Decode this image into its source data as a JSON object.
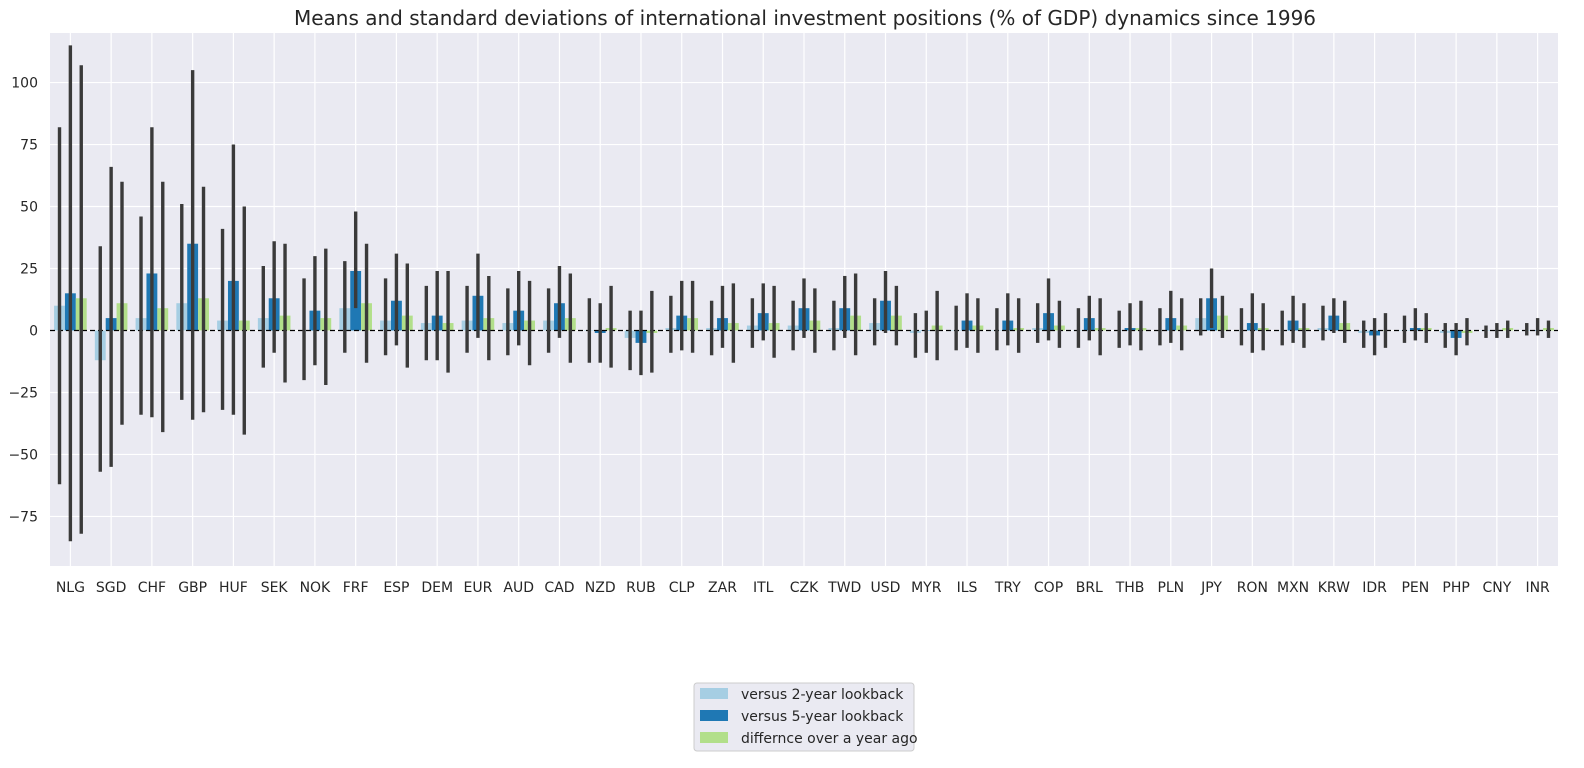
{
  "chart_data": {
    "type": "bar",
    "title": "Means and standard deviations of international investment positions (% of GDP) dynamics since 1996",
    "xlabel": "",
    "ylabel": "",
    "ylim": [
      -95,
      120
    ],
    "yticks": [
      -75,
      -50,
      -25,
      0,
      25,
      50,
      75,
      100
    ],
    "grid": true,
    "zero_line": "dashed",
    "legend_position": "bottom-center",
    "categories": [
      "NLG",
      "SGD",
      "CHF",
      "GBP",
      "HUF",
      "SEK",
      "NOK",
      "FRF",
      "ESP",
      "DEM",
      "EUR",
      "AUD",
      "CAD",
      "NZD",
      "RUB",
      "CLP",
      "ZAR",
      "ITL",
      "CZK",
      "TWD",
      "USD",
      "MYR",
      "ILS",
      "TRY",
      "COP",
      "BRL",
      "THB",
      "PLN",
      "JPY",
      "RON",
      "MXN",
      "KRW",
      "IDR",
      "PEN",
      "PHP",
      "CNY",
      "INR"
    ],
    "series": [
      {
        "name": "versus 2-year lookback",
        "color": "#a6cee3",
        "values": [
          10,
          -12,
          5,
          11,
          4,
          5,
          0,
          9,
          4,
          3,
          4,
          3,
          4,
          0,
          -3,
          1,
          1,
          2,
          2,
          1,
          3,
          -1,
          0,
          0,
          1,
          0,
          0,
          0,
          5,
          0,
          0,
          1,
          -1,
          0,
          -1,
          0,
          0
        ],
        "err_low": [
          -62,
          -57,
          -34,
          -28,
          -32,
          -15,
          -20,
          -9,
          -10,
          -12,
          -9,
          -10,
          -9,
          -13,
          -16,
          -9,
          -10,
          -7,
          -8,
          -8,
          -6,
          -11,
          -8,
          -8,
          -5,
          -7,
          -7,
          -6,
          -2,
          -6,
          -6,
          -4,
          -7,
          -5,
          -7,
          -3,
          -2
        ],
        "err_high": [
          82,
          34,
          46,
          51,
          41,
          26,
          21,
          28,
          21,
          18,
          18,
          17,
          17,
          13,
          8,
          14,
          12,
          13,
          12,
          12,
          13,
          7,
          10,
          9,
          11,
          9,
          8,
          9,
          13,
          9,
          8,
          10,
          4,
          6,
          3,
          2,
          3
        ]
      },
      {
        "name": "versus 5-year lookback",
        "color": "#1f78b4",
        "values": [
          15,
          5,
          23,
          35,
          20,
          13,
          8,
          24,
          12,
          6,
          14,
          8,
          11,
          -1,
          -5,
          6,
          5,
          7,
          9,
          9,
          12,
          0,
          4,
          4,
          7,
          5,
          1,
          5,
          13,
          3,
          4,
          6,
          -2,
          1,
          -3,
          0,
          0
        ],
        "err_low": [
          -85,
          -55,
          -35,
          -36,
          -34,
          -9,
          -14,
          9,
          -6,
          -12,
          -3,
          -6,
          -3,
          -13,
          -18,
          -8,
          -7,
          -4,
          -3,
          -3,
          -1,
          -9,
          -7,
          -6,
          -4,
          -4,
          -6,
          -5,
          1,
          -9,
          -5,
          -1,
          -10,
          -4,
          -10,
          -3,
          -2
        ],
        "err_high": [
          115,
          66,
          82,
          105,
          75,
          36,
          30,
          48,
          31,
          24,
          31,
          24,
          26,
          11,
          8,
          20,
          18,
          19,
          21,
          22,
          24,
          8,
          15,
          15,
          21,
          14,
          11,
          16,
          25,
          15,
          14,
          13,
          5,
          9,
          3,
          3,
          5
        ]
      },
      {
        "name": "differnce over a year ago",
        "color": "#b2df8a",
        "values": [
          13,
          11,
          9,
          13,
          4,
          6,
          5,
          11,
          6,
          3,
          5,
          4,
          5,
          1,
          -1,
          5,
          3,
          3,
          4,
          6,
          6,
          2,
          2,
          1,
          2,
          1,
          1,
          2,
          6,
          1,
          1,
          3,
          0,
          1,
          -1,
          1,
          1
        ],
        "err_low": [
          -82,
          -38,
          -41,
          -33,
          -42,
          -21,
          -22,
          -13,
          -15,
          -17,
          -12,
          -14,
          -13,
          -15,
          -17,
          -9,
          -13,
          -11,
          -9,
          -10,
          -6,
          -12,
          -9,
          -9,
          -7,
          -10,
          -8,
          -8,
          -3,
          -8,
          -7,
          -5,
          -7,
          -5,
          -6,
          -3,
          -3
        ],
        "err_high": [
          107,
          60,
          60,
          58,
          50,
          35,
          33,
          35,
          27,
          24,
          22,
          20,
          23,
          18,
          16,
          20,
          19,
          18,
          17,
          23,
          18,
          16,
          13,
          13,
          12,
          13,
          12,
          13,
          14,
          11,
          11,
          12,
          7,
          7,
          5,
          4,
          4
        ]
      }
    ]
  }
}
